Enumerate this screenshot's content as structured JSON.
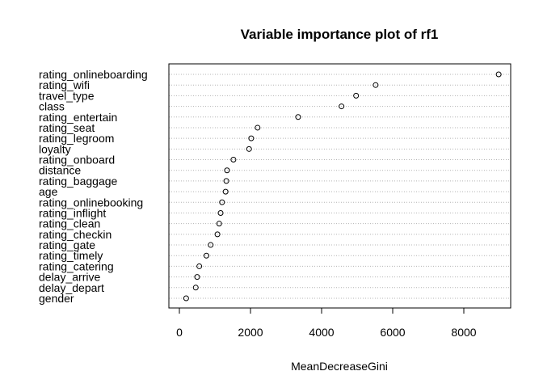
{
  "chart_data": {
    "type": "scatter",
    "title": "Variable importance plot of rf1",
    "xlabel": "MeanDecreaseGini",
    "ylabel": "",
    "xlim": [
      -420,
      9300
    ],
    "x_ticks": [
      0,
      2000,
      4000,
      6000,
      8000
    ],
    "x_tick_labels": [
      "0",
      "2000",
      "4000",
      "6000",
      "8000"
    ],
    "grid": "dotted horizontal guide lines",
    "legend": "none",
    "marker": "open circle",
    "categories": [
      "rating_onlineboarding",
      "rating_wifi",
      "travel_type",
      "class",
      "rating_entertain",
      "rating_seat",
      "rating_legroom",
      "loyalty",
      "rating_onboard",
      "distance",
      "rating_baggage",
      "age",
      "rating_onlinebooking",
      "rating_inflight",
      "rating_clean",
      "rating_checkin",
      "rating_gate",
      "rating_timely",
      "rating_catering",
      "delay_arrive",
      "delay_depart",
      "gender"
    ],
    "values": [
      8980,
      5520,
      4970,
      4560,
      3340,
      2200,
      2020,
      1960,
      1520,
      1340,
      1320,
      1300,
      1200,
      1160,
      1120,
      1070,
      880,
      760,
      560,
      500,
      460,
      190
    ]
  }
}
